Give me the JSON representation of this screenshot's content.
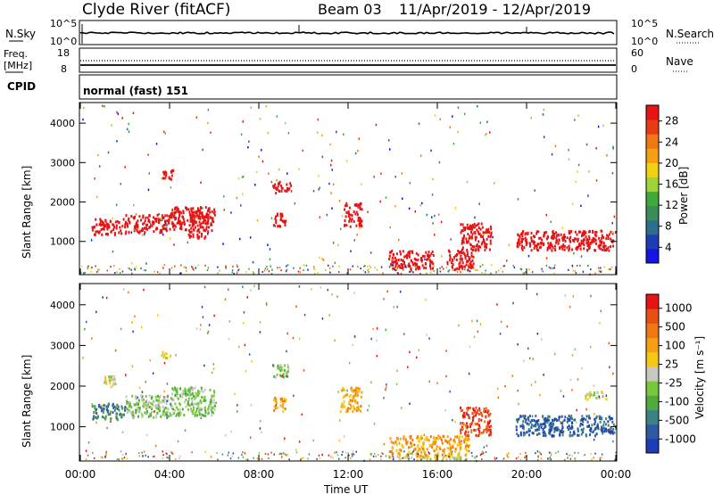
{
  "header": {
    "station": "Clyde River (fitACF)",
    "beam": "Beam 03",
    "date_range": "11/Apr/2019 - 12/Apr/2019"
  },
  "noise_panel": {
    "left_label": "N.Sky",
    "right_label": "N.Search",
    "left_ticks": [
      "10^5",
      "10^0"
    ],
    "right_ticks": [
      "10^5",
      "10^0"
    ]
  },
  "freq_panel": {
    "left_label_1": "Freq.",
    "left_label_2": "[MHz]",
    "right_label": "Nave",
    "left_ticks": [
      "18",
      "8"
    ],
    "right_ticks": [
      "60",
      "0"
    ]
  },
  "cpid_panel": {
    "label": "CPID",
    "value": "normal (fast) 151"
  },
  "colors": {
    "power_scale": [
      "#1414e6",
      "#1e3cb4",
      "#2d6e8c",
      "#3c8c5a",
      "#3caa3c",
      "#a0d23c",
      "#f0d214",
      "#f5a014",
      "#f07814",
      "#e63c14",
      "#e61414"
    ],
    "velocity_scale": [
      "#1e3cb4",
      "#2d5aa0",
      "#3c8282",
      "#50aa3c",
      "#78c83c",
      "#c8c8c0",
      "#f5c814",
      "#f5a014",
      "#f07814",
      "#e65014",
      "#e61414"
    ]
  },
  "chart_data": [
    {
      "type": "heatmap",
      "panel": "power",
      "title": "",
      "xlabel": "Time UT",
      "ylabel": "Slant Range [km]",
      "x_ticks": [
        "00:00",
        "04:00",
        "08:00",
        "12:00",
        "16:00",
        "20:00",
        "00:00"
      ],
      "xlim_hours": [
        0,
        24
      ],
      "y_ticks": [
        1000,
        2000,
        3000,
        4000
      ],
      "ylim": [
        180,
        4500
      ],
      "colorbar_label": "Power [dB]",
      "colorbar_ticks": [
        "28",
        "24",
        "20",
        "16",
        "12",
        "8",
        "4"
      ],
      "colorbar_range": [
        0,
        30
      ],
      "regions": [
        {
          "t0": 0.5,
          "t1": 2.0,
          "r0": 1200,
          "r1": 1600,
          "level": 11
        },
        {
          "t0": 2.0,
          "t1": 4.0,
          "r0": 1250,
          "r1": 1700,
          "level": 14
        },
        {
          "t0": 4.0,
          "t1": 6.0,
          "r0": 1300,
          "r1": 1900,
          "level": 18
        },
        {
          "t0": 4.8,
          "t1": 5.7,
          "r0": 1100,
          "r1": 1800,
          "level": 26
        },
        {
          "t0": 3.6,
          "t1": 4.2,
          "r0": 2600,
          "r1": 2850,
          "level": 15
        },
        {
          "t0": 8.6,
          "t1": 9.4,
          "r0": 2250,
          "r1": 2550,
          "level": 18
        },
        {
          "t0": 8.6,
          "t1": 9.2,
          "r0": 1400,
          "r1": 1750,
          "level": 15
        },
        {
          "t0": 11.8,
          "t1": 12.6,
          "r0": 1400,
          "r1": 2000,
          "level": 12
        },
        {
          "t0": 13.8,
          "t1": 15.8,
          "r0": 300,
          "r1": 800,
          "level": 24
        },
        {
          "t0": 16.4,
          "t1": 17.6,
          "r0": 300,
          "r1": 800,
          "level": 24
        },
        {
          "t0": 17.0,
          "t1": 18.4,
          "r0": 800,
          "r1": 1500,
          "level": 18
        },
        {
          "t0": 19.5,
          "t1": 22.0,
          "r0": 800,
          "r1": 1300,
          "level": 12
        },
        {
          "t0": 22.0,
          "t1": 24.0,
          "r0": 800,
          "r1": 1300,
          "level": 18
        }
      ]
    },
    {
      "type": "heatmap",
      "panel": "velocity",
      "title": "",
      "xlabel": "Time UT",
      "ylabel": "Slant Range [km]",
      "x_ticks": [
        "00:00",
        "04:00",
        "08:00",
        "12:00",
        "16:00",
        "20:00",
        "00:00"
      ],
      "xlim_hours": [
        0,
        24
      ],
      "y_ticks": [
        1000,
        2000,
        3000,
        4000
      ],
      "ylim": [
        180,
        4500
      ],
      "colorbar_label": "Velocity [m s⁻¹]",
      "colorbar_ticks": [
        "1000",
        "500",
        "100",
        "25",
        "-25",
        "-100",
        "-500",
        "-1000"
      ],
      "regions": [
        {
          "t0": 0.5,
          "t1": 2.0,
          "r0": 1200,
          "r1": 1600,
          "level": 2
        },
        {
          "t0": 2.0,
          "t1": 4.0,
          "r0": 1250,
          "r1": 1800,
          "level": 4
        },
        {
          "t0": 4.0,
          "t1": 6.0,
          "r0": 1300,
          "r1": 2000,
          "level": 4
        },
        {
          "t0": 1.0,
          "t1": 1.6,
          "r0": 2000,
          "r1": 2300,
          "level": 5
        },
        {
          "t0": 3.6,
          "t1": 4.0,
          "r0": 2700,
          "r1": 2900,
          "level": 5
        },
        {
          "t0": 8.6,
          "t1": 9.4,
          "r0": 2250,
          "r1": 2550,
          "level": 4
        },
        {
          "t0": 8.6,
          "t1": 9.2,
          "r0": 1400,
          "r1": 1750,
          "level": 7
        },
        {
          "t0": 11.6,
          "t1": 12.6,
          "r0": 1400,
          "r1": 2000,
          "level": 7
        },
        {
          "t0": 13.8,
          "t1": 17.4,
          "r0": 300,
          "r1": 800,
          "level": 7
        },
        {
          "t0": 13.8,
          "t1": 17.4,
          "r0": 200,
          "r1": 300,
          "level": 5
        },
        {
          "t0": 17.0,
          "t1": 18.4,
          "r0": 800,
          "r1": 1500,
          "level": 9
        },
        {
          "t0": 19.5,
          "t1": 24.0,
          "r0": 800,
          "r1": 1300,
          "level": 1
        },
        {
          "t0": 22.6,
          "t1": 23.6,
          "r0": 1700,
          "r1": 1900,
          "level": 5
        }
      ]
    }
  ]
}
